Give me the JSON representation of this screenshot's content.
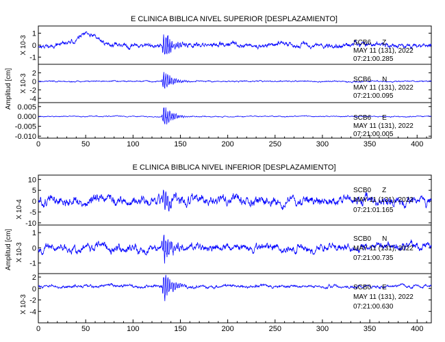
{
  "colors": {
    "trace": "#0000ff",
    "axis": "#000000",
    "background": "#ffffff"
  },
  "chart_data": [
    {
      "type": "line",
      "title": "E CLINICA BIBLICA NIVEL SUPERIOR [DESPLAZAMIENTO]",
      "xlabel": "",
      "ylabel": "Amplitud [cm]",
      "xlim": [
        0,
        415
      ],
      "xticks": [
        "0",
        "50",
        "100",
        "150",
        "200",
        "250",
        "300",
        "350",
        "400"
      ],
      "grid": false,
      "event_time": 133,
      "panels": [
        {
          "scale_label": "X 10-3",
          "ylim": [
            -1.6,
            1.6
          ],
          "yticks": [
            {
              "v": 1,
              "t": "1"
            },
            {
              "v": 0,
              "t": "0"
            },
            {
              "v": -1,
              "t": "-1"
            }
          ],
          "station": "SCB6",
          "component": "Z",
          "date": "MAY 11 (131), 2022",
          "time": "07:21:00.285",
          "noise_amp": 0.35,
          "event_amp": 1.3,
          "baseline": 0.0,
          "early_bump": 0.9,
          "seed": 11
        },
        {
          "scale_label": "X 10-3",
          "ylim": [
            -5,
            4
          ],
          "yticks": [
            {
              "v": 2,
              "t": "2"
            },
            {
              "v": 0,
              "t": "0"
            },
            {
              "v": -2,
              "t": "-2"
            },
            {
              "v": -4,
              "t": "-4"
            }
          ],
          "station": "SCB6",
          "component": "N",
          "date": "MAY 11 (131), 2022",
          "time": "07:21:00.095",
          "noise_amp": 0.25,
          "event_amp": 3.0,
          "baseline": 0.0,
          "early_bump": 0.0,
          "seed": 23
        },
        {
          "scale_label": "",
          "ylim": [
            -0.011,
            0.007
          ],
          "yticks": [
            {
              "v": 0.005,
              "t": "0.005"
            },
            {
              "v": 0.0,
              "t": "0.000"
            },
            {
              "v": -0.005,
              "t": "-0.005"
            },
            {
              "v": -0.01,
              "t": "-0.010"
            }
          ],
          "station": "SCB6",
          "component": "E",
          "date": "MAY 11 (131), 2022",
          "time": "07:21:00.005",
          "noise_amp": 0.0004,
          "event_amp": 0.0065,
          "baseline": 0.0,
          "early_bump": 0.0,
          "seed": 37
        }
      ]
    },
    {
      "type": "line",
      "title": "E CLINICA BIBLICA NIVEL INFERIOR [DESPLAZAMIENTO]",
      "xlabel": "",
      "ylabel": "Amplitud [cm]",
      "xlim": [
        0,
        415
      ],
      "xticks": [
        "0",
        "50",
        "100",
        "150",
        "200",
        "250",
        "300",
        "350",
        "400"
      ],
      "grid": false,
      "event_time": 133,
      "panels": [
        {
          "scale_label": "X 10-4",
          "ylim": [
            -11,
            12
          ],
          "yticks": [
            {
              "v": 10,
              "t": "10"
            },
            {
              "v": 5,
              "t": "5"
            },
            {
              "v": 0,
              "t": "0"
            },
            {
              "v": -5,
              "t": "-5"
            },
            {
              "v": -10,
              "t": "-10"
            }
          ],
          "station": "SCB0",
          "component": "Z",
          "date": "MAY 11 (131), 2022",
          "time": "07:21:01.165",
          "noise_amp": 3.8,
          "event_amp": 6.0,
          "baseline": 0.0,
          "early_bump": 0.0,
          "seed": 51
        },
        {
          "scale_label": "X 10-3",
          "ylim": [
            -1.7,
            1.5
          ],
          "yticks": [
            {
              "v": 1,
              "t": "1"
            },
            {
              "v": 0,
              "t": "0"
            },
            {
              "v": -1,
              "t": "-1"
            }
          ],
          "station": "SCB0",
          "component": "N",
          "date": "MAY 11 (131), 2022",
          "time": "07:21:00.735",
          "noise_amp": 0.45,
          "event_amp": 1.1,
          "baseline": 0.0,
          "early_bump": 0.0,
          "seed": 67
        },
        {
          "scale_label": "X 10-3",
          "ylim": [
            -6,
            2.6
          ],
          "yticks": [
            {
              "v": 2,
              "t": "2"
            },
            {
              "v": 0,
              "t": "0"
            },
            {
              "v": -2,
              "t": "-2"
            },
            {
              "v": -4,
              "t": "-4"
            }
          ],
          "station": "SCB0",
          "component": "E",
          "date": "MAY 11 (131), 2022",
          "time": "07:21:00.630",
          "noise_amp": 0.45,
          "event_amp": 3.0,
          "baseline": 0.4,
          "early_bump": 0.0,
          "seed": 83
        }
      ]
    }
  ]
}
